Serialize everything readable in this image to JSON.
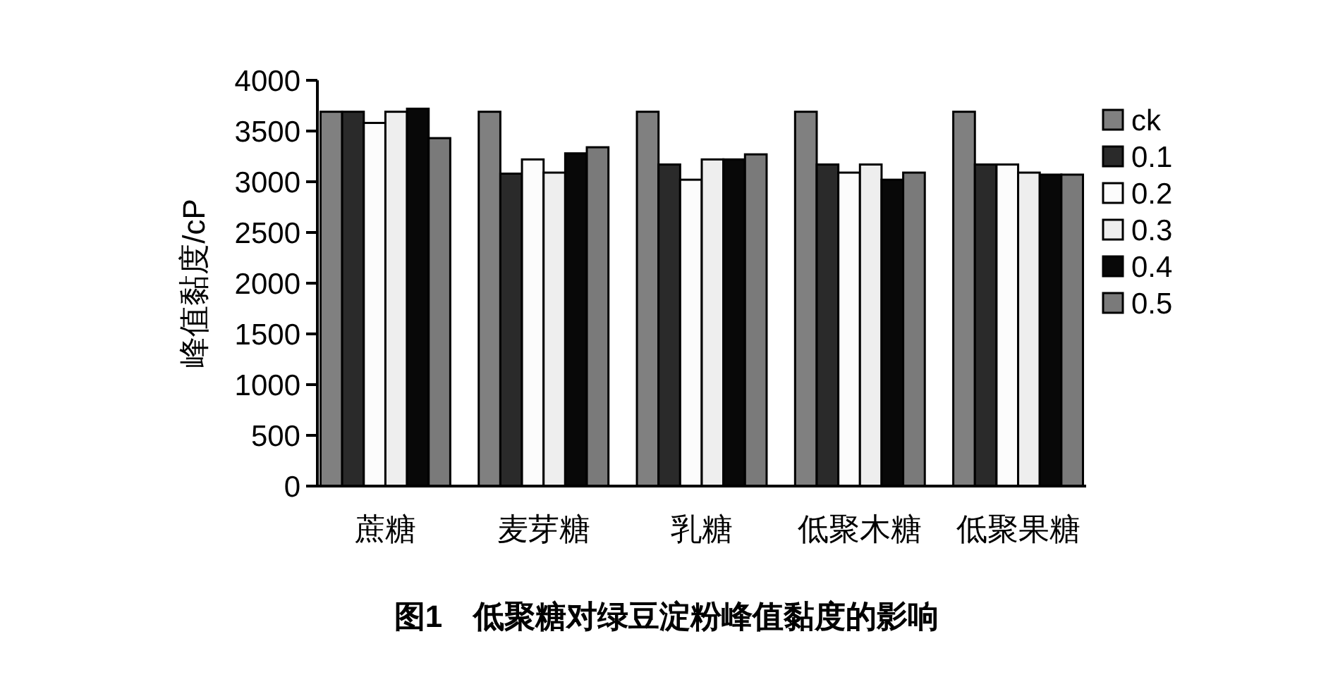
{
  "chart_data": {
    "type": "bar",
    "title": "图1　低聚糖对绿豆淀粉峰值黏度的影响",
    "ylabel": "峰值黏度/cP",
    "categories": [
      "蔗糖",
      "麦芽糖",
      "乳糖",
      "低聚木糖",
      "低聚果糖"
    ],
    "series": [
      {
        "name": "ck",
        "color": "#808080",
        "values": [
          3690,
          3690,
          3690,
          3690,
          3690
        ]
      },
      {
        "name": "0.1",
        "color": "#2a2a2a",
        "values": [
          3690,
          3080,
          3170,
          3170,
          3170
        ]
      },
      {
        "name": "0.2",
        "color": "#fcfcfc",
        "values": [
          3580,
          3220,
          3020,
          3090,
          3170
        ]
      },
      {
        "name": "0.3",
        "color": "#eeeeee",
        "values": [
          3690,
          3090,
          3220,
          3170,
          3090
        ]
      },
      {
        "name": "0.4",
        "color": "#080808",
        "values": [
          3720,
          3280,
          3220,
          3020,
          3070
        ]
      },
      {
        "name": "0.5",
        "color": "#7a7a7a",
        "values": [
          3430,
          3340,
          3270,
          3090,
          3070
        ]
      }
    ],
    "ylim": [
      0,
      4000
    ],
    "yticks": [
      0,
      500,
      1000,
      1500,
      2000,
      2500,
      3000,
      3500,
      4000
    ],
    "grid": false,
    "legend": "right"
  }
}
